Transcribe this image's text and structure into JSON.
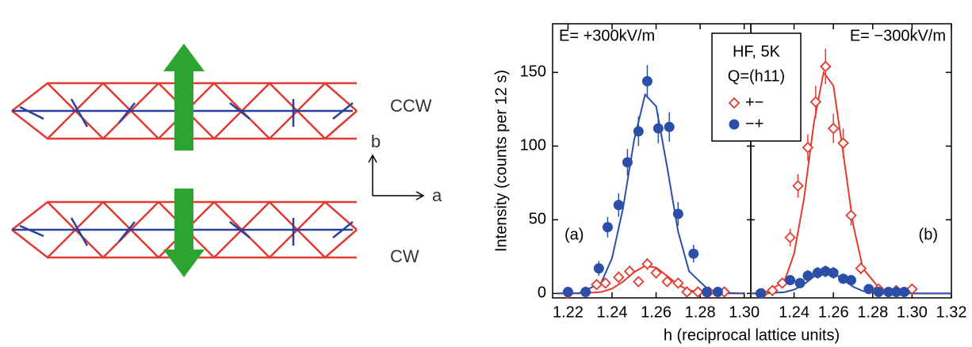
{
  "diagram": {
    "labels": [
      "CCW",
      "CW",
      "b",
      "a"
    ]
  },
  "chart_data": [
    {
      "type": "scatter",
      "xlim": [
        1.213,
        1.303
      ],
      "ylim": [
        -3,
        183
      ],
      "xticks": [
        1.22,
        1.24,
        1.26,
        1.28,
        {
          "value": 1.3,
          "label": "1.30"
        }
      ],
      "yticks": [
        0,
        50,
        100,
        150
      ],
      "ylabel": "Intensity (counts per 12 s)",
      "xlabel": "h (reciprocal lattice units)",
      "annotations": [
        "E= +300kV/m",
        "(a)"
      ],
      "legend_title": [
        "HF, 5K",
        "Q=(h11)"
      ],
      "series": [
        {
          "name": "+−",
          "color": "#e23a2e",
          "marker": "diamond",
          "x": [
            1.22,
            1.228,
            1.233,
            1.237,
            1.243,
            1.248,
            1.252,
            1.256,
            1.26,
            1.265,
            1.27,
            1.274,
            1.279,
            1.284,
            1.291
          ],
          "values": [
            0,
            1,
            6,
            7,
            11,
            15,
            8,
            20,
            14,
            8,
            7,
            1,
            1,
            1,
            1
          ],
          "errors": [
            2,
            2,
            3,
            3,
            4,
            4,
            3,
            4,
            4,
            3,
            3,
            2,
            2,
            2,
            2
          ]
        },
        {
          "name": "−+",
          "color": "#2b4fa8",
          "marker": "circle",
          "x": [
            1.22,
            1.228,
            1.234,
            1.238,
            1.243,
            1.247,
            1.252,
            1.256,
            1.261,
            1.266,
            1.27,
            1.277,
            1.283,
            1.288
          ],
          "values": [
            1,
            1,
            17,
            45,
            60,
            89,
            110,
            144,
            112,
            113,
            54,
            27,
            1,
            1
          ],
          "errors": [
            2,
            2,
            5,
            7,
            8,
            9,
            10,
            11,
            10,
            10,
            8,
            6,
            2,
            2
          ]
        }
      ],
      "fits": [
        {
          "color": "#e23a2e",
          "x": [
            1.215,
            1.225,
            1.235,
            1.24,
            1.245,
            1.25,
            1.255,
            1.26,
            1.265,
            1.27,
            1.275,
            1.285,
            1.3
          ],
          "values": [
            0,
            0,
            1,
            3.3,
            8,
            14.4,
            18.7,
            17.6,
            11.9,
            5.8,
            2.1,
            0.1,
            0
          ]
        },
        {
          "color": "#2b4fa8",
          "x": [
            1.215,
            1.225,
            1.235,
            1.24,
            1.245,
            1.25,
            1.255,
            1.26,
            1.265,
            1.27,
            1.275,
            1.285,
            1.3
          ],
          "values": [
            0,
            0.2,
            7,
            24,
            58,
            104,
            135,
            127,
            86,
            42,
            15,
            0.7,
            0
          ]
        }
      ]
    },
    {
      "type": "scatter",
      "xlim": [
        1.218,
        1.32
      ],
      "ylim": [
        -3,
        183
      ],
      "xticks": [
        1.24,
        1.26,
        1.28,
        {
          "value": 1.3,
          "label": "1.30"
        },
        1.32
      ],
      "annotations": [
        "E= −300kV/m",
        "(b)"
      ],
      "series": [
        {
          "color": "#e23a2e",
          "marker": "diamond",
          "x": [
            1.224,
            1.229,
            1.234,
            1.238,
            1.242,
            1.247,
            1.251,
            1.256,
            1.26,
            1.265,
            1.269,
            1.274,
            1.283,
            1.292,
            1.3
          ],
          "values": [
            0,
            2,
            7,
            38,
            73,
            99,
            130,
            154,
            112,
            102,
            53,
            17,
            3,
            2,
            3
          ],
          "errors": [
            2,
            2,
            3,
            6,
            8,
            9,
            11,
            12,
            10,
            10,
            7,
            4,
            2,
            2,
            2
          ]
        },
        {
          "color": "#2b4fa8",
          "marker": "circle",
          "x": [
            1.223,
            1.238,
            1.243,
            1.247,
            1.252,
            1.256,
            1.26,
            1.265,
            1.269,
            1.278,
            1.283,
            1.288,
            1.292,
            1.296
          ],
          "values": [
            0,
            9,
            7,
            12,
            14,
            15,
            14,
            10,
            9,
            3,
            1,
            1,
            1,
            1
          ],
          "errors": [
            2,
            3,
            3,
            4,
            4,
            4,
            4,
            3,
            3,
            2,
            2,
            2,
            2,
            2
          ]
        }
      ],
      "fits": [
        {
          "color": "#e23a2e",
          "x": [
            1.218,
            1.225,
            1.235,
            1.24,
            1.245,
            1.25,
            1.255,
            1.26,
            1.265,
            1.27,
            1.275,
            1.285,
            1.3,
            1.32
          ],
          "values": [
            0,
            0.2,
            8,
            27,
            64,
            115,
            150,
            141,
            95,
            47,
            17,
            0.8,
            0,
            0
          ]
        },
        {
          "color": "#2b4fa8",
          "x": [
            1.218,
            1.225,
            1.235,
            1.24,
            1.245,
            1.25,
            1.255,
            1.26,
            1.265,
            1.27,
            1.275,
            1.285,
            1.3,
            1.32
          ],
          "values": [
            0,
            0,
            0.8,
            2.6,
            6.2,
            11.4,
            14.8,
            13.9,
            9.4,
            4.6,
            1.6,
            0.1,
            0,
            0
          ]
        }
      ]
    }
  ]
}
